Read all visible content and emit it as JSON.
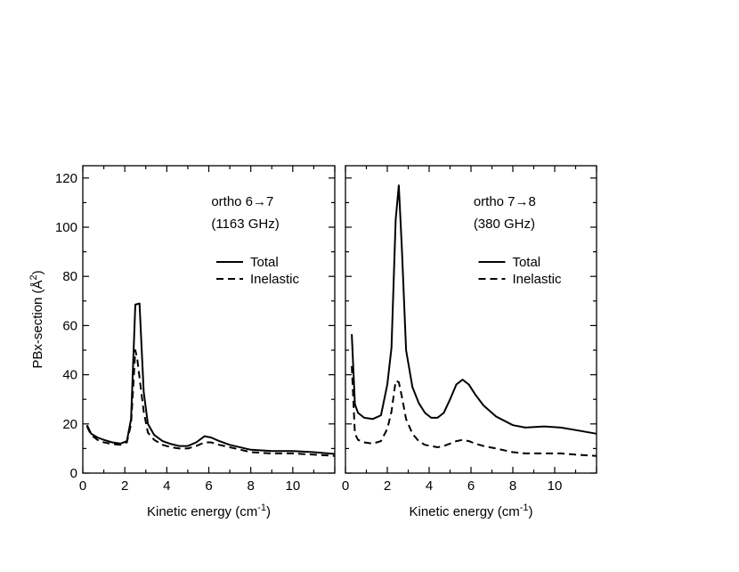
{
  "chart_data": [
    {
      "type": "line",
      "annotation_lines": [
        "ortho 6→7",
        "(1163 GHz)"
      ],
      "xlabel": "Kinetic energy (cm-1)",
      "ylabel": "PBx-section (Å²)",
      "xlim": [
        0,
        12
      ],
      "ylim": [
        0,
        125
      ],
      "xticks": [
        0,
        2,
        4,
        6,
        8,
        10
      ],
      "yticks": [
        0,
        20,
        40,
        60,
        80,
        100,
        120
      ],
      "show_y_tick_labels": true,
      "legend_position": "upper-right",
      "series": [
        {
          "name": "Total",
          "style": "solid",
          "x": [
            0.2,
            0.4,
            0.7,
            1.0,
            1.4,
            1.8,
            2.1,
            2.3,
            2.5,
            2.7,
            2.9,
            3.1,
            3.4,
            3.8,
            4.2,
            4.6,
            5.0,
            5.4,
            5.8,
            6.1,
            6.5,
            7.0,
            8.0,
            9.0,
            10.0,
            11.0,
            12.0
          ],
          "y": [
            19.5,
            16.0,
            14.5,
            13.5,
            12.5,
            12.0,
            13.0,
            22.0,
            68.5,
            69.0,
            33.0,
            20.0,
            15.5,
            13.0,
            11.8,
            11.0,
            11.0,
            12.5,
            15.0,
            14.5,
            13.0,
            11.5,
            9.5,
            9.0,
            9.0,
            8.5,
            7.8
          ]
        },
        {
          "name": "Inelastic",
          "style": "dashed",
          "x": [
            0.2,
            0.4,
            0.7,
            1.0,
            1.4,
            1.8,
            2.1,
            2.3,
            2.5,
            2.6,
            2.9,
            3.1,
            3.4,
            3.8,
            4.2,
            4.6,
            5.0,
            5.4,
            5.8,
            6.1,
            6.5,
            7.0,
            8.0,
            9.0,
            10.0,
            11.0,
            12.0
          ],
          "y": [
            19.0,
            15.5,
            13.5,
            12.5,
            11.8,
            11.5,
            12.5,
            20.0,
            50.0,
            46.0,
            25.0,
            16.5,
            13.5,
            11.5,
            10.5,
            10.0,
            10.0,
            11.0,
            12.5,
            12.5,
            11.5,
            10.5,
            8.5,
            8.0,
            8.0,
            7.5,
            7.0
          ]
        }
      ]
    },
    {
      "type": "line",
      "annotation_lines": [
        "ortho 7→8",
        "(380 GHz)"
      ],
      "xlabel": "Kinetic energy (cm-1)",
      "ylabel": "",
      "xlim": [
        0,
        12
      ],
      "ylim": [
        0,
        125
      ],
      "xticks": [
        0,
        2,
        4,
        6,
        8,
        10
      ],
      "yticks": [
        0,
        20,
        40,
        60,
        80,
        100,
        120
      ],
      "show_y_tick_labels": false,
      "legend_position": "upper-right",
      "series": [
        {
          "name": "Total",
          "style": "solid",
          "x": [
            0.3,
            0.45,
            0.6,
            0.9,
            1.3,
            1.7,
            2.0,
            2.2,
            2.4,
            2.55,
            2.7,
            2.9,
            3.2,
            3.5,
            3.8,
            4.1,
            4.4,
            4.7,
            5.0,
            5.3,
            5.6,
            5.9,
            6.2,
            6.6,
            7.2,
            8.0,
            8.6,
            9.5,
            10.3,
            11.0,
            12.0
          ],
          "y": [
            56.5,
            28.0,
            24.5,
            22.5,
            22.0,
            23.5,
            36.0,
            51.0,
            103.0,
            117.0,
            91.0,
            50.0,
            35.0,
            28.5,
            24.5,
            22.5,
            22.5,
            24.5,
            30.0,
            36.0,
            38.0,
            36.0,
            32.0,
            27.5,
            23.0,
            19.5,
            18.5,
            19.0,
            18.5,
            17.5,
            16.0
          ]
        },
        {
          "name": "Inelastic",
          "style": "dashed",
          "x": [
            0.3,
            0.45,
            0.6,
            0.9,
            1.3,
            1.7,
            2.0,
            2.2,
            2.4,
            2.55,
            2.7,
            2.9,
            3.2,
            3.5,
            3.8,
            4.1,
            4.4,
            4.7,
            5.0,
            5.3,
            5.6,
            5.9,
            6.2,
            6.6,
            7.2,
            8.0,
            8.6,
            9.5,
            10.3,
            11.0,
            12.0
          ],
          "y": [
            43.5,
            16.0,
            13.5,
            12.5,
            12.0,
            13.0,
            18.0,
            25.0,
            37.5,
            37.0,
            31.0,
            22.0,
            16.0,
            13.0,
            11.5,
            11.0,
            10.5,
            11.0,
            12.0,
            13.0,
            13.5,
            13.0,
            12.0,
            11.0,
            10.0,
            8.5,
            8.0,
            8.0,
            8.0,
            7.5,
            7.0
          ]
        }
      ]
    }
  ]
}
